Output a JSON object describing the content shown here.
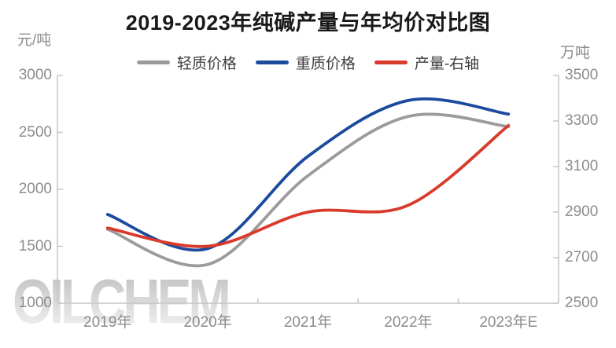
{
  "title": "2019-2023年纯碱产量与年均价对比图",
  "left_axis_unit": "元/吨",
  "right_axis_unit": "万吨",
  "watermark": "OILCHEM",
  "colors": {
    "title_text": "#1a1a1a",
    "axis_line": "#c6c6c6",
    "tick_label": "#8c8c8c",
    "legend_label": "#404040",
    "watermark": "#dcdcdc",
    "series_gray": "#9b9b9b",
    "series_blue": "#1c4a9d",
    "series_red": "#d93b2b"
  },
  "chart_data": {
    "type": "line",
    "smooth": true,
    "grid": false,
    "legend_position": "top",
    "title": "2019-2023年纯碱产量与年均价对比图",
    "categories": [
      "2019年",
      "2020年",
      "2021年",
      "2022年",
      "2023年E"
    ],
    "left_axis": {
      "unit": "元/吨",
      "min": 1000,
      "max": 3000,
      "ticks": [
        3000,
        2500,
        2000,
        1500,
        1000
      ]
    },
    "right_axis": {
      "unit": "万吨",
      "min": 2500,
      "max": 3500,
      "ticks": [
        3500,
        3300,
        3100,
        2900,
        2700,
        2500
      ]
    },
    "series": [
      {
        "name": "轻质价格",
        "axis": "left",
        "color": "#9b9b9b",
        "values": [
          1650,
          1340,
          2120,
          2640,
          2550
        ]
      },
      {
        "name": "重质价格",
        "axis": "left",
        "color": "#1c4a9d",
        "values": [
          1780,
          1480,
          2290,
          2780,
          2660
        ]
      },
      {
        "name": "产量-右轴",
        "axis": "right",
        "color": "#d93b2b",
        "values": [
          2830,
          2750,
          2900,
          2930,
          3280
        ]
      }
    ]
  }
}
